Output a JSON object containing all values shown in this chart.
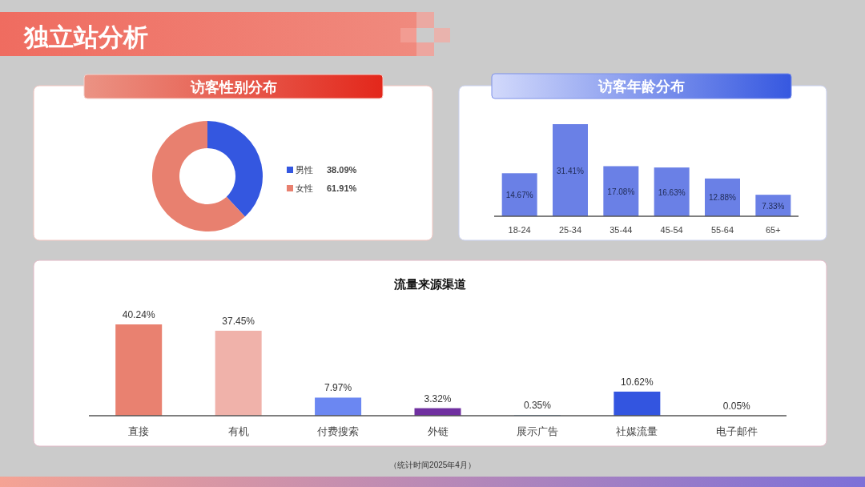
{
  "chart_data": [
    {
      "type": "other",
      "title": "独立站分析"
    },
    {
      "type": "donut",
      "title": "访客性别分布",
      "categories": [
        "男性",
        "女性"
      ],
      "values": [
        38.09,
        61.91
      ],
      "colors": [
        "#3457e0",
        "#e8806f"
      ],
      "value_labels": [
        "38.09%",
        "61.91%"
      ],
      "legend": "right"
    },
    {
      "type": "bar",
      "title": "访客年龄分布",
      "categories": [
        "18-24",
        "25-34",
        "35-44",
        "45-54",
        "55-64",
        "65+"
      ],
      "values": [
        14.67,
        31.41,
        17.08,
        16.63,
        12.88,
        7.33
      ],
      "color": "#6a80e6",
      "value_labels": [
        "14.67%",
        "31.41%",
        "17.08%",
        "16.63%",
        "12.88%",
        "7.33%"
      ]
    },
    {
      "type": "bar",
      "title": "流量来源渠道",
      "categories": [
        "直接",
        "有机",
        "付费搜索",
        "外链",
        "展示广告",
        "社媒流量",
        "电子邮件"
      ],
      "values": [
        40.24,
        37.45,
        7.97,
        3.32,
        0.35,
        10.62,
        0.05
      ],
      "colors": [
        "#e98170",
        "#f0b2aa",
        "#6b87f2",
        "#7030a0",
        "#9dc3e6",
        "#3355e0",
        "#f4b183"
      ],
      "value_labels": [
        "40.24%",
        "37.45%",
        "7.97%",
        "3.32%",
        "0.35%",
        "10.62%",
        "0.05%"
      ],
      "annotations": [
        "（统计时间2025年4月）"
      ]
    }
  ]
}
